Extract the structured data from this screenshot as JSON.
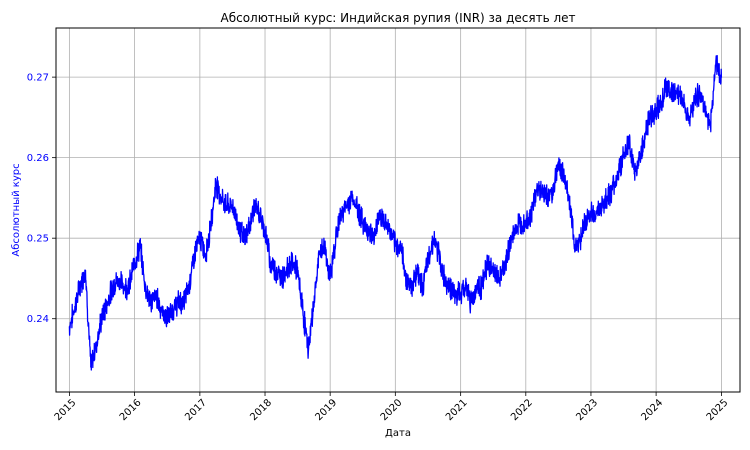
{
  "chart_data": {
    "type": "line",
    "title": "Абсолютный курс: Индийская рупия (INR) за десять лет",
    "xlabel": "Дата",
    "ylabel": "Абсолютный курс",
    "x_ticks": [
      "2015",
      "2016",
      "2017",
      "2018",
      "2019",
      "2020",
      "2021",
      "2022",
      "2023",
      "2024",
      "2025"
    ],
    "y_ticks": [
      "0.24",
      "0.25",
      "0.26",
      "0.27"
    ],
    "xlim": [
      "2014-10-18",
      "2025-04-15"
    ],
    "ylim": [
      0.2309,
      0.2761
    ],
    "grid": true,
    "colors": {
      "line": "#0000ff",
      "ylabel": "#0000ff",
      "ytick": "#0000ff",
      "axis": "#000000",
      "grid": "#b0b0b0"
    },
    "series": [
      {
        "x": [
          "2015-01-01",
          "2015-02-01",
          "2015-03-01",
          "2015-04-01",
          "2015-05-01",
          "2015-06-01",
          "2015-07-01",
          "2015-08-01",
          "2015-09-01",
          "2015-10-01",
          "2015-11-01",
          "2015-12-01",
          "2016-01-01",
          "2016-02-01",
          "2016-03-01",
          "2016-04-01",
          "2016-05-01",
          "2016-06-01",
          "2016-07-01",
          "2016-08-01",
          "2016-09-01",
          "2016-10-01",
          "2016-11-01",
          "2016-12-01",
          "2017-01-01",
          "2017-02-01",
          "2017-03-01",
          "2017-04-01",
          "2017-05-01",
          "2017-06-01",
          "2017-07-01",
          "2017-08-01",
          "2017-09-01",
          "2017-10-01",
          "2017-11-01",
          "2017-12-01",
          "2018-01-01",
          "2018-02-01",
          "2018-03-01",
          "2018-04-01",
          "2018-05-01",
          "2018-06-01",
          "2018-07-01",
          "2018-08-01",
          "2018-09-01",
          "2018-10-01",
          "2018-11-01",
          "2018-12-01",
          "2019-01-01",
          "2019-02-01",
          "2019-03-01",
          "2019-04-01",
          "2019-05-01",
          "2019-06-01",
          "2019-07-01",
          "2019-08-01",
          "2019-09-01",
          "2019-10-01",
          "2019-11-01",
          "2019-12-01",
          "2020-01-01",
          "2020-02-01",
          "2020-03-01",
          "2020-04-01",
          "2020-05-01",
          "2020-06-01",
          "2020-07-01",
          "2020-08-01",
          "2020-09-01",
          "2020-10-01",
          "2020-11-01",
          "2020-12-01",
          "2021-01-01",
          "2021-02-01",
          "2021-03-01",
          "2021-04-01",
          "2021-05-01",
          "2021-06-01",
          "2021-07-01",
          "2021-08-01",
          "2021-09-01",
          "2021-10-01",
          "2021-11-01",
          "2021-12-01",
          "2022-01-01",
          "2022-02-01",
          "2022-03-01",
          "2022-04-01",
          "2022-05-01",
          "2022-06-01",
          "2022-07-01",
          "2022-08-01",
          "2022-09-01",
          "2022-10-01",
          "2022-11-01",
          "2022-12-01",
          "2023-01-01",
          "2023-02-01",
          "2023-03-01",
          "2023-04-01",
          "2023-05-01",
          "2023-06-01",
          "2023-07-01",
          "2023-08-01",
          "2023-09-01",
          "2023-10-01",
          "2023-11-01",
          "2023-12-01",
          "2024-01-01",
          "2024-02-01",
          "2024-03-01",
          "2024-04-01",
          "2024-05-01",
          "2024-06-01",
          "2024-07-01",
          "2024-08-01",
          "2024-09-01",
          "2024-10-01",
          "2024-11-01",
          "2024-12-01",
          "2025-01-01"
        ],
        "y": [
          0.239,
          0.2415,
          0.244,
          0.246,
          0.234,
          0.237,
          0.24,
          0.242,
          0.244,
          0.245,
          0.244,
          0.244,
          0.247,
          0.249,
          0.244,
          0.242,
          0.243,
          0.241,
          0.24,
          0.241,
          0.242,
          0.242,
          0.244,
          0.248,
          0.25,
          0.248,
          0.251,
          0.257,
          0.255,
          0.254,
          0.254,
          0.252,
          0.25,
          0.251,
          0.254,
          0.253,
          0.251,
          0.247,
          0.246,
          0.245,
          0.246,
          0.247,
          0.246,
          0.241,
          0.236,
          0.242,
          0.248,
          0.249,
          0.245,
          0.25,
          0.253,
          0.254,
          0.255,
          0.254,
          0.252,
          0.251,
          0.25,
          0.253,
          0.252,
          0.251,
          0.249,
          0.249,
          0.245,
          0.244,
          0.246,
          0.244,
          0.247,
          0.25,
          0.248,
          0.245,
          0.244,
          0.243,
          0.243,
          0.244,
          0.242,
          0.244,
          0.244,
          0.247,
          0.246,
          0.245,
          0.246,
          0.249,
          0.251,
          0.252,
          0.252,
          0.253,
          0.256,
          0.256,
          0.255,
          0.256,
          0.259,
          0.258,
          0.255,
          0.249,
          0.25,
          0.252,
          0.253,
          0.253,
          0.254,
          0.255,
          0.256,
          0.258,
          0.26,
          0.262,
          0.258,
          0.26,
          0.263,
          0.265,
          0.266,
          0.267,
          0.269,
          0.268,
          0.268,
          0.267,
          0.265,
          0.267,
          0.268,
          0.266,
          0.264,
          0.272,
          0.27
        ]
      }
    ]
  }
}
